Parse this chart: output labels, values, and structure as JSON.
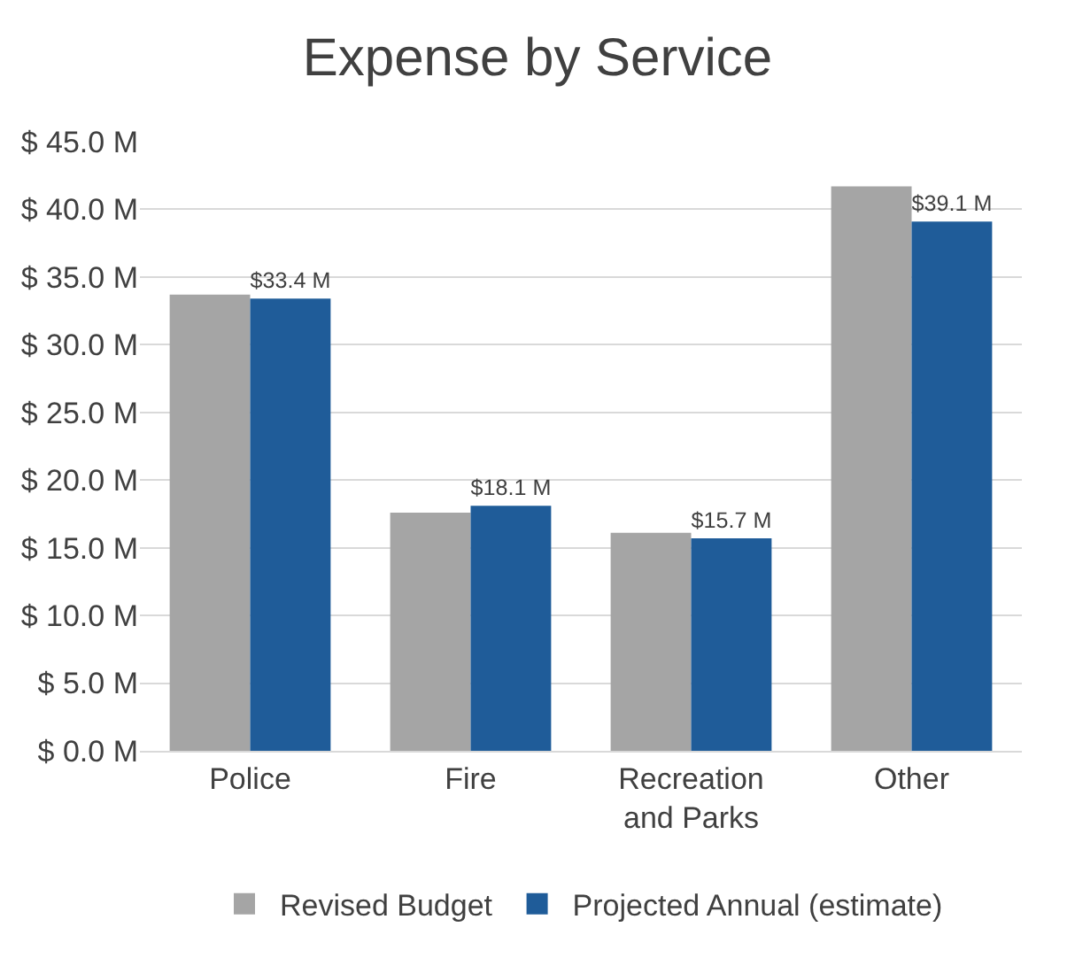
{
  "chart_data": {
    "type": "bar",
    "title": "Expense by Service",
    "categories": [
      "Police",
      "Fire",
      "Recreation and Parks",
      "Other"
    ],
    "series": [
      {
        "name": "Revised Budget",
        "color": "#a5a5a5",
        "values": [
          33.7,
          17.6,
          16.1,
          41.7
        ]
      },
      {
        "name": "Projected Annual (estimate)",
        "color": "#1f5c99",
        "values": [
          33.4,
          18.1,
          15.7,
          39.1
        ],
        "value_labels": [
          "$33.4 M",
          "$18.1 M",
          "$15.7 M",
          "$39.1 M"
        ]
      }
    ],
    "ylim": [
      0,
      45
    ],
    "yticks": [
      {
        "value": 0,
        "label": "$ 0.0 M"
      },
      {
        "value": 5,
        "label": "$ 5.0 M"
      },
      {
        "value": 10,
        "label": "$ 10.0 M"
      },
      {
        "value": 15,
        "label": "$ 15.0 M"
      },
      {
        "value": 20,
        "label": "$ 20.0 M"
      },
      {
        "value": 25,
        "label": "$ 25.0 M"
      },
      {
        "value": 30,
        "label": "$ 30.0 M"
      },
      {
        "value": 35,
        "label": "$ 35.0 M"
      },
      {
        "value": 40,
        "label": "$ 40.0 M"
      },
      {
        "value": 45,
        "label": "$ 45.0 M"
      }
    ],
    "grid": "y",
    "legend": "bottom"
  }
}
